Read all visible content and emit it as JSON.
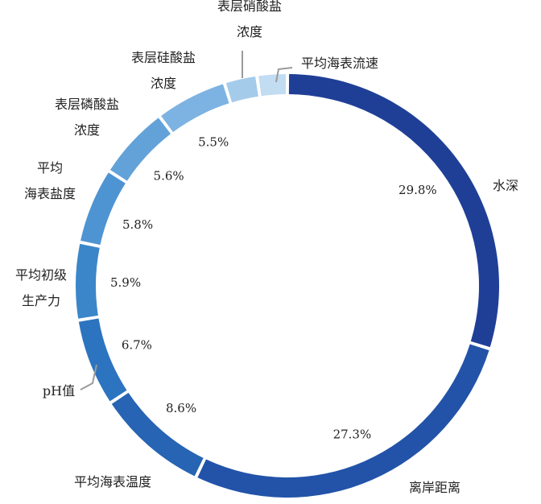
{
  "chart_data": {
    "type": "pie",
    "style": "donut",
    "title": "",
    "categories": [
      "水深",
      "离岸距离",
      "平均海表温度",
      "pH值",
      "平均初级生产力",
      "平均海表盐度",
      "表层磷酸盐浓度",
      "表层硅酸盐浓度",
      "表层硝酸盐浓度",
      "平均海表流速"
    ],
    "category_lines": [
      [
        "水深"
      ],
      [
        "离岸距离"
      ],
      [
        "平均海表温度"
      ],
      [
        "pH值"
      ],
      [
        "平均初级",
        "生产力"
      ],
      [
        "平均",
        "海表盐度"
      ],
      [
        "表层磷酸盐",
        "浓度"
      ],
      [
        "表层硅酸盐",
        "浓度"
      ],
      [
        "表层硝酸盐",
        "浓度"
      ],
      [
        "平均海表流速"
      ]
    ],
    "values": [
      29.8,
      27.3,
      8.6,
      6.7,
      5.9,
      5.8,
      5.6,
      5.5,
      2.5,
      2.3
    ],
    "value_labels": [
      "29.8%",
      "27.3%",
      "8.6%",
      "6.7%",
      "5.9%",
      "5.8%",
      "5.6%",
      "5.5%",
      "",
      ""
    ],
    "colors": [
      "#1f3f97",
      "#2253a8",
      "#2764b3",
      "#2c74bf",
      "#3b86c9",
      "#4f94d2",
      "#63a2d9",
      "#7db3e2",
      "#a5cbeb",
      "#c2dcf2"
    ],
    "direction": "clockwise",
    "start": "top",
    "legend": "none"
  }
}
